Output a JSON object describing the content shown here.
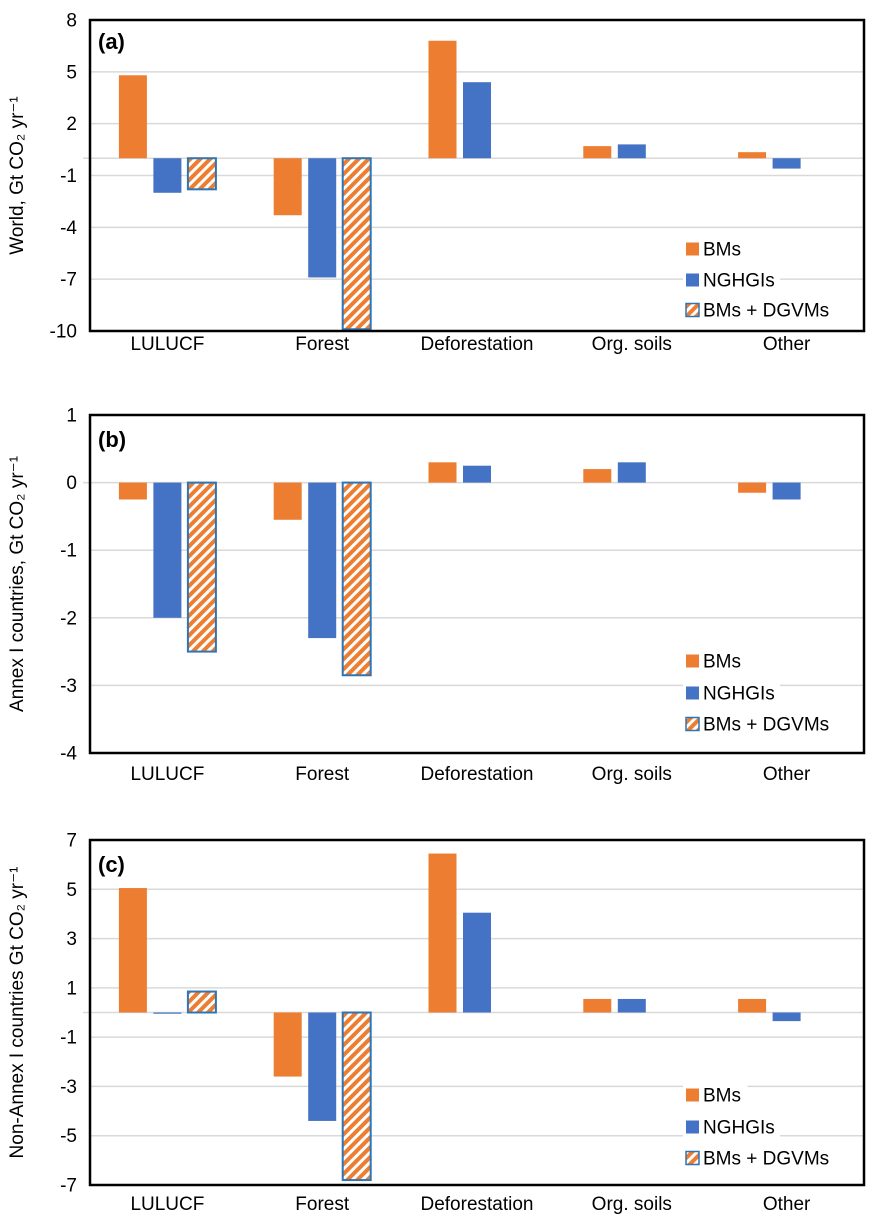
{
  "figure": {
    "background": "#FFFFFF"
  },
  "colors": {
    "bms_orange": "#ED7D31",
    "nghgis_blue": "#4472C4",
    "hatch_border_blue": "#2E75B6",
    "gridline_gray": "#D9D9D9",
    "axis_black": "#000000",
    "text_black": "#000000"
  },
  "legend": {
    "items": [
      {
        "label": "BMs",
        "style": "solid-orange"
      },
      {
        "label": "NGHGIs",
        "style": "solid-blue"
      },
      {
        "label": "BMs + DGVMs",
        "style": "orange-hatch-blue-border"
      }
    ]
  },
  "chart_data": [
    {
      "id": "a",
      "panel_label": "(a)",
      "type": "bar",
      "ylabel": "World, Gt CO₂ yr⁻¹",
      "ylim": [
        -10,
        8
      ],
      "yticks": [
        8,
        5,
        2,
        -1,
        -4,
        -7,
        -10
      ],
      "grid": true,
      "legend_position": "inside-bottom-right",
      "categories": [
        "LULUCF",
        "Forest",
        "Deforestation",
        "Org. soils",
        "Other"
      ],
      "series": [
        {
          "name": "BMs",
          "style": "solid-orange",
          "values": [
            4.8,
            -3.3,
            6.8,
            0.7,
            0.35
          ]
        },
        {
          "name": "NGHGIs",
          "style": "solid-blue",
          "values": [
            -2.0,
            -6.9,
            4.4,
            0.8,
            -0.6
          ]
        },
        {
          "name": "BMs + DGVMs",
          "style": "orange-hatch-blue-border",
          "values": [
            -1.8,
            -9.9,
            null,
            null,
            null
          ]
        }
      ]
    },
    {
      "id": "b",
      "panel_label": "(b)",
      "type": "bar",
      "ylabel": "Annex I countries, Gt CO₂ yr⁻¹",
      "ylim": [
        -4,
        1
      ],
      "yticks": [
        1,
        0,
        -1,
        -2,
        -3,
        -4
      ],
      "grid": true,
      "legend_position": "inside-bottom-right",
      "categories": [
        "LULUCF",
        "Forest",
        "Deforestation",
        "Org. soils",
        "Other"
      ],
      "series": [
        {
          "name": "BMs",
          "style": "solid-orange",
          "values": [
            -0.25,
            -0.55,
            0.3,
            0.2,
            -0.15
          ]
        },
        {
          "name": "NGHGIs",
          "style": "solid-blue",
          "values": [
            -2.0,
            -2.3,
            0.25,
            0.3,
            -0.25
          ]
        },
        {
          "name": "BMs + DGVMs",
          "style": "orange-hatch-blue-border",
          "values": [
            -2.5,
            -2.85,
            null,
            null,
            null
          ]
        }
      ]
    },
    {
      "id": "c",
      "panel_label": "(c)",
      "type": "bar",
      "ylabel": "Non-Annex I countries Gt CO₂ yr⁻¹",
      "ylim": [
        -7,
        7
      ],
      "yticks": [
        7,
        5,
        3,
        1,
        -1,
        -3,
        -5,
        -7
      ],
      "grid": true,
      "legend_position": "inside-bottom-right",
      "categories": [
        "LULUCF",
        "Forest",
        "Deforestation",
        "Org. soils",
        "Other"
      ],
      "series": [
        {
          "name": "BMs",
          "style": "solid-orange",
          "values": [
            5.05,
            -2.6,
            6.45,
            0.55,
            0.55
          ]
        },
        {
          "name": "NGHGIs",
          "style": "solid-blue",
          "values": [
            -0.05,
            -4.4,
            4.05,
            0.55,
            -0.35
          ]
        },
        {
          "name": "BMs + DGVMs",
          "style": "orange-hatch-blue-border",
          "values": [
            0.85,
            -6.8,
            null,
            null,
            null
          ]
        }
      ]
    }
  ]
}
